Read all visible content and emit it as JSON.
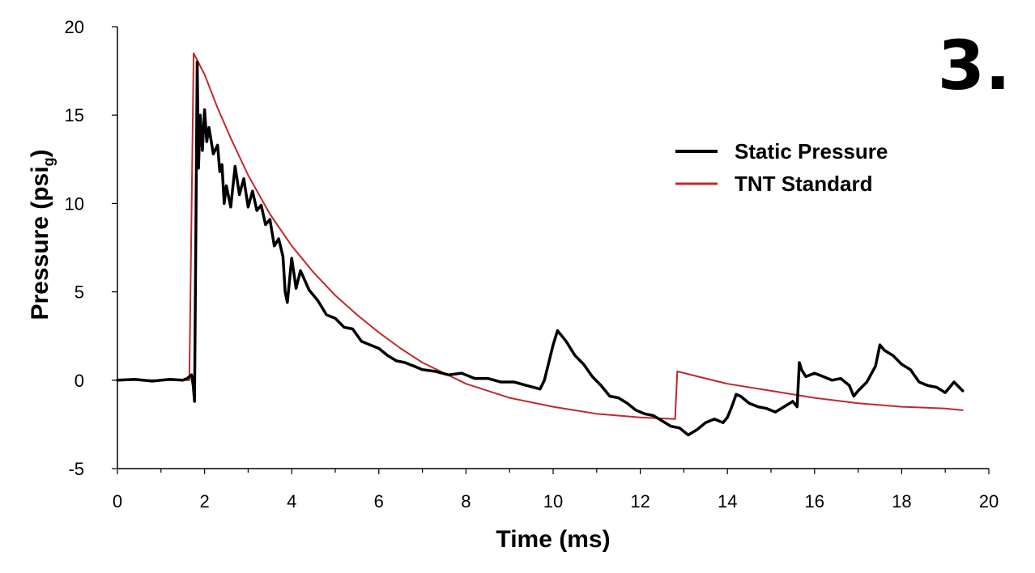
{
  "panel_label": "3.",
  "chart_data": {
    "type": "line",
    "xlabel": "Time (ms)",
    "ylabel": {
      "main": "Pressure (psi",
      "sub": "g",
      "close": ")"
    },
    "xlim": [
      0,
      20
    ],
    "ylim": [
      -5,
      20
    ],
    "x_ticks": [
      "0",
      "2",
      "4",
      "6",
      "8",
      "10",
      "12",
      "14",
      "16",
      "18",
      "20"
    ],
    "y_ticks": [
      "-5",
      "0",
      "5",
      "10",
      "15",
      "20"
    ],
    "grid": false,
    "legend_position": "top-right",
    "series": [
      {
        "name": "Static Pressure",
        "color": "#000000",
        "points": [
          [
            0,
            0.0
          ],
          [
            0.4,
            0.05
          ],
          [
            0.8,
            -0.05
          ],
          [
            1.2,
            0.05
          ],
          [
            1.5,
            0.0
          ],
          [
            1.6,
            0.1
          ],
          [
            1.7,
            0.3
          ],
          [
            1.74,
            -0.3
          ],
          [
            1.77,
            -1.2
          ],
          [
            1.8,
            8.0
          ],
          [
            1.83,
            18.0
          ],
          [
            1.86,
            12.0
          ],
          [
            1.9,
            15.0
          ],
          [
            1.95,
            13.0
          ],
          [
            2.0,
            15.3
          ],
          [
            2.05,
            13.5
          ],
          [
            2.1,
            14.3
          ],
          [
            2.2,
            12.8
          ],
          [
            2.3,
            13.3
          ],
          [
            2.35,
            11.8
          ],
          [
            2.4,
            12.2
          ],
          [
            2.45,
            10.0
          ],
          [
            2.5,
            11.0
          ],
          [
            2.6,
            9.8
          ],
          [
            2.7,
            12.1
          ],
          [
            2.8,
            10.5
          ],
          [
            2.9,
            11.4
          ],
          [
            3.0,
            9.8
          ],
          [
            3.1,
            10.7
          ],
          [
            3.2,
            9.6
          ],
          [
            3.3,
            9.9
          ],
          [
            3.4,
            8.8
          ],
          [
            3.5,
            9.1
          ],
          [
            3.6,
            7.6
          ],
          [
            3.7,
            8.0
          ],
          [
            3.8,
            7.0
          ],
          [
            3.85,
            5.0
          ],
          [
            3.9,
            4.4
          ],
          [
            4.0,
            6.9
          ],
          [
            4.1,
            5.2
          ],
          [
            4.2,
            6.2
          ],
          [
            4.4,
            5.1
          ],
          [
            4.6,
            4.5
          ],
          [
            4.8,
            3.7
          ],
          [
            5.0,
            3.5
          ],
          [
            5.2,
            3.0
          ],
          [
            5.4,
            2.9
          ],
          [
            5.6,
            2.2
          ],
          [
            5.8,
            2.0
          ],
          [
            6.0,
            1.8
          ],
          [
            6.2,
            1.4
          ],
          [
            6.4,
            1.1
          ],
          [
            6.6,
            1.0
          ],
          [
            6.8,
            0.8
          ],
          [
            7.0,
            0.6
          ],
          [
            7.3,
            0.5
          ],
          [
            7.6,
            0.3
          ],
          [
            7.9,
            0.4
          ],
          [
            8.2,
            0.1
          ],
          [
            8.5,
            0.1
          ],
          [
            8.8,
            -0.1
          ],
          [
            9.1,
            -0.1
          ],
          [
            9.4,
            -0.3
          ],
          [
            9.7,
            -0.5
          ],
          [
            9.8,
            0.0
          ],
          [
            9.9,
            1.0
          ],
          [
            10.0,
            2.0
          ],
          [
            10.1,
            2.8
          ],
          [
            10.2,
            2.5
          ],
          [
            10.3,
            2.2
          ],
          [
            10.5,
            1.4
          ],
          [
            10.7,
            0.9
          ],
          [
            10.9,
            0.2
          ],
          [
            11.1,
            -0.3
          ],
          [
            11.3,
            -0.9
          ],
          [
            11.5,
            -1.0
          ],
          [
            11.7,
            -1.3
          ],
          [
            11.9,
            -1.7
          ],
          [
            12.1,
            -1.9
          ],
          [
            12.3,
            -2.0
          ],
          [
            12.5,
            -2.3
          ],
          [
            12.7,
            -2.6
          ],
          [
            12.9,
            -2.7
          ],
          [
            13.1,
            -3.1
          ],
          [
            13.3,
            -2.8
          ],
          [
            13.5,
            -2.4
          ],
          [
            13.7,
            -2.2
          ],
          [
            13.9,
            -2.4
          ],
          [
            14.0,
            -2.1
          ],
          [
            14.1,
            -1.5
          ],
          [
            14.2,
            -0.8
          ],
          [
            14.3,
            -0.9
          ],
          [
            14.5,
            -1.3
          ],
          [
            14.7,
            -1.5
          ],
          [
            14.9,
            -1.6
          ],
          [
            15.1,
            -1.8
          ],
          [
            15.3,
            -1.5
          ],
          [
            15.5,
            -1.2
          ],
          [
            15.6,
            -1.5
          ],
          [
            15.65,
            1.0
          ],
          [
            15.7,
            0.6
          ],
          [
            15.8,
            0.2
          ],
          [
            16.0,
            0.4
          ],
          [
            16.2,
            0.2
          ],
          [
            16.4,
            0.0
          ],
          [
            16.6,
            0.1
          ],
          [
            16.8,
            -0.3
          ],
          [
            16.9,
            -0.9
          ],
          [
            17.0,
            -0.6
          ],
          [
            17.2,
            -0.1
          ],
          [
            17.4,
            0.8
          ],
          [
            17.5,
            2.0
          ],
          [
            17.6,
            1.7
          ],
          [
            17.8,
            1.4
          ],
          [
            18.0,
            0.9
          ],
          [
            18.2,
            0.6
          ],
          [
            18.4,
            -0.1
          ],
          [
            18.6,
            -0.3
          ],
          [
            18.8,
            -0.4
          ],
          [
            19.0,
            -0.7
          ],
          [
            19.2,
            -0.1
          ],
          [
            19.4,
            -0.6
          ]
        ]
      },
      {
        "name": "TNT Standard",
        "color": "#c0282d",
        "points": [
          [
            0,
            0.0
          ],
          [
            1.65,
            0.0
          ],
          [
            1.75,
            18.5
          ],
          [
            2.0,
            17.3
          ],
          [
            2.3,
            15.4
          ],
          [
            2.6,
            13.7
          ],
          [
            3.0,
            11.6
          ],
          [
            3.5,
            9.4
          ],
          [
            4.0,
            7.6
          ],
          [
            4.5,
            6.1
          ],
          [
            5.0,
            4.8
          ],
          [
            5.5,
            3.7
          ],
          [
            6.0,
            2.7
          ],
          [
            6.5,
            1.8
          ],
          [
            7.0,
            1.0
          ],
          [
            8.0,
            -0.2
          ],
          [
            9.0,
            -1.0
          ],
          [
            10.0,
            -1.5
          ],
          [
            11.0,
            -1.9
          ],
          [
            12.0,
            -2.1
          ],
          [
            12.8,
            -2.2
          ],
          [
            12.85,
            0.5
          ],
          [
            13.5,
            0.1
          ],
          [
            14.0,
            -0.2
          ],
          [
            15.0,
            -0.6
          ],
          [
            16.0,
            -1.0
          ],
          [
            17.0,
            -1.3
          ],
          [
            18.0,
            -1.5
          ],
          [
            19.0,
            -1.6
          ],
          [
            19.4,
            -1.7
          ]
        ]
      }
    ]
  }
}
